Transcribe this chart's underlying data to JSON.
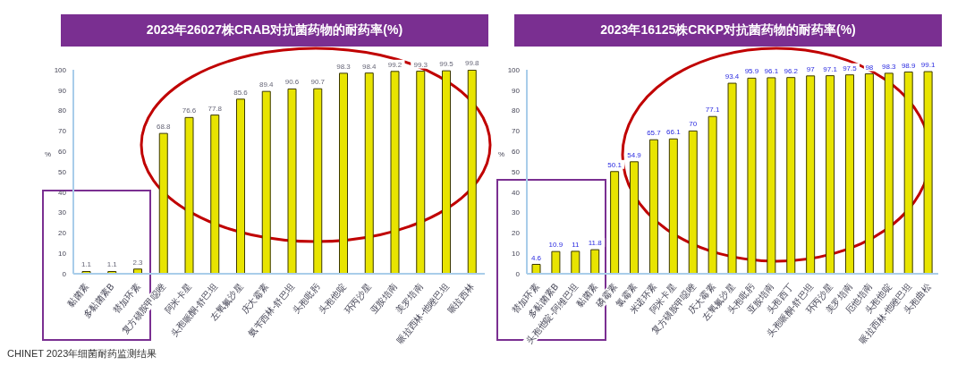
{
  "chart_data": [
    {
      "type": "bar",
      "title": "2023年26027株CRAB对抗菌药物的耐药率(%)",
      "ylabel": "%",
      "categories": [
        "黏菌素",
        "多黏菌素B",
        "替加环素",
        "复方磺胺甲噁唑",
        "阿米卡星",
        "头孢哌酮-舒巴坦",
        "左氧氟沙星",
        "庆大霉素",
        "氨苄西林-舒巴坦",
        "头孢吡肟",
        "头孢他啶",
        "环丙沙星",
        "亚胺培南",
        "美罗培南",
        "哌拉西林-他唑巴坦",
        "哌拉西林"
      ],
      "values": [
        1.1,
        1.1,
        2.3,
        68.8,
        76.6,
        77.8,
        85.6,
        89.4,
        90.6,
        90.7,
        98.3,
        98.4,
        99.2,
        99.3,
        99.5,
        99.8
      ],
      "color": "#e8e400",
      "ylim": [
        0,
        100
      ],
      "yticks": [
        0,
        10,
        20,
        30,
        40,
        50,
        60,
        70,
        80,
        90,
        100
      ],
      "data_labels": true,
      "annotations": [
        "CHINET 2023年细菌耐药监测结果"
      ]
    },
    {
      "type": "bar",
      "title": "2023年16125株CRKP对抗菌药物的耐药率(%)",
      "ylabel": "%",
      "categories": [
        "替加环素",
        "多黏菌素B",
        "头孢他啶-阿维巴坦",
        "黏菌素",
        "磷霉素",
        "氯霉素",
        "米诺环素",
        "阿米卡星",
        "复方磺胺甲噁唑",
        "庆大霉素",
        "左氧氟沙星",
        "头孢吡肟",
        "亚胺培南",
        "头孢西丁",
        "头孢哌酮-舒巴坦",
        "环丙沙星",
        "美罗培南",
        "厄他培南",
        "头孢他啶",
        "哌拉西林-他唑巴坦",
        "头孢曲松"
      ],
      "values": [
        4.6,
        10.9,
        11,
        11.8,
        50.1,
        54.9,
        65.7,
        66.1,
        70,
        77.1,
        93.4,
        95.9,
        96.1,
        96.2,
        97,
        97.1,
        97.5,
        98,
        98.3,
        98.9,
        99.1
      ],
      "color": "#e8e400",
      "ylim": [
        0,
        100
      ],
      "yticks": [
        0,
        10,
        20,
        30,
        40,
        50,
        60,
        70,
        80,
        90,
        100
      ],
      "data_labels": true
    }
  ]
}
